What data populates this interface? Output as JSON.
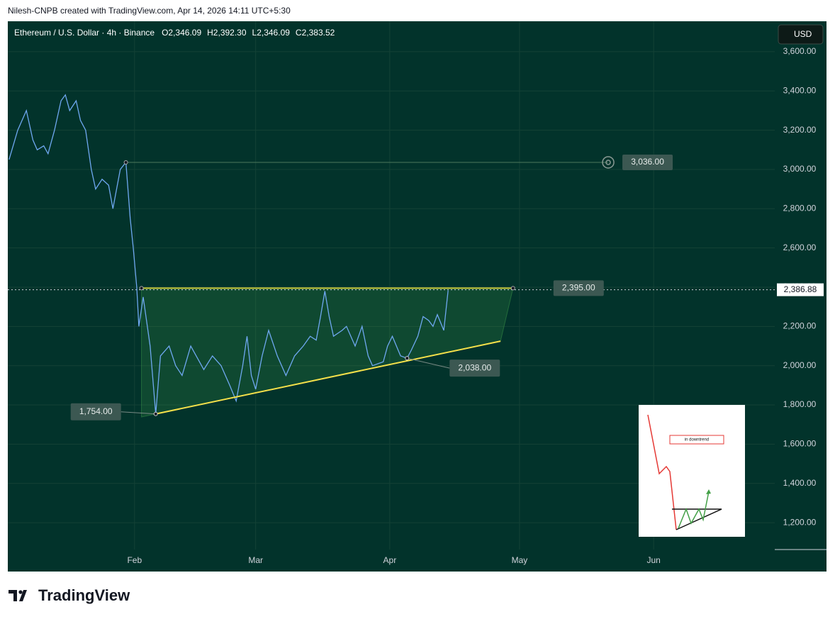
{
  "attribution": "Nilesh-CNPB created with TradingView.com, Apr 14, 2026 14:11 UTC+5:30",
  "brand": "TradingView",
  "chart_data": {
    "type": "line",
    "title": "Ethereum / U.S. Dollar · 4h · Binance",
    "ohlc": [
      "O2,346.09",
      "H2,392.30",
      "L2,346.09",
      "C2,383.52"
    ],
    "currency": "USD",
    "color": "#6fa8f0",
    "x": [
      3,
      5,
      7,
      8.5,
      9.5,
      11,
      12,
      13.5,
      15,
      16,
      17,
      18.5,
      19.5,
      20.7,
      22,
      23,
      24.5,
      26,
      27,
      28.7,
      30,
      31,
      31.7,
      32.5,
      33,
      34,
      35.6,
      36.9,
      38,
      40,
      41.5,
      43,
      45,
      48,
      50,
      52,
      54,
      55.5,
      57,
      58,
      59,
      60,
      61.5,
      63,
      65,
      67,
      69,
      71,
      72.6,
      74,
      75,
      76,
      77,
      78,
      80,
      81,
      83,
      84.6,
      86,
      87,
      89.5,
      90.5,
      91.6,
      93.5,
      95,
      96,
      97.5,
      98.7,
      100,
      101,
      102,
      103.5,
      104.5
    ],
    "values": [
      3050,
      3200,
      3300,
      3150,
      3100,
      3120,
      3080,
      3200,
      3350,
      3380,
      3300,
      3350,
      3250,
      3200,
      3000,
      2900,
      2950,
      2920,
      2800,
      3000,
      3036,
      2750,
      2600,
      2400,
      2200,
      2350,
      2100,
      1754,
      2050,
      2100,
      2000,
      1950,
      2100,
      1980,
      2050,
      2000,
      1900,
      1820,
      2000,
      2150,
      1950,
      1880,
      2050,
      2180,
      2050,
      1950,
      2050,
      2100,
      2150,
      2130,
      2250,
      2380,
      2250,
      2150,
      2180,
      2200,
      2100,
      2200,
      2050,
      2000,
      2020,
      2100,
      2150,
      2050,
      2038,
      2080,
      2150,
      2250,
      2230,
      2200,
      2260,
      2180,
      2383.52
    ],
    "xlim": [
      2.7,
      180
    ],
    "xticks": [
      {
        "value": 32,
        "label": "Feb"
      },
      {
        "value": 60,
        "label": "Mar"
      },
      {
        "value": 91,
        "label": "Apr"
      },
      {
        "value": 121,
        "label": "May"
      },
      {
        "value": 152,
        "label": "Jun"
      }
    ],
    "ylim": [
      1063,
      3755
    ],
    "yticks": [
      {
        "value": 1200,
        "label": "1,200.00"
      },
      {
        "value": 1400,
        "label": "1,400.00"
      },
      {
        "value": 1600,
        "label": "1,600.00"
      },
      {
        "value": 1800,
        "label": "1,800.00"
      },
      {
        "value": 2000,
        "label": "2,000.00"
      },
      {
        "value": 2200,
        "label": "2,200.00"
      },
      {
        "value": 2400,
        "label": "2,400.00"
      },
      {
        "value": 2600,
        "label": "2,600.00"
      },
      {
        "value": 2800,
        "label": "2,800.00"
      },
      {
        "value": 3000,
        "label": "3,000.00"
      },
      {
        "value": 3200,
        "label": "3,200.00"
      },
      {
        "value": 3400,
        "label": "3,400.00"
      },
      {
        "value": 3600,
        "label": "3,600.00"
      }
    ],
    "grid": true,
    "last_price": {
      "value": 2386.88,
      "label": "2,386.88"
    },
    "levels": [
      {
        "value": 3036,
        "label": "3,036.00",
        "x_start": 30,
        "x_end": 141.5
      },
      {
        "value": 2395,
        "label": "2,395.00",
        "x_start": 33.6,
        "x_end": 119.5
      }
    ],
    "trendline": {
      "x": [
        36.9,
        116.6
      ],
      "y": [
        1754,
        2125
      ]
    },
    "points": [
      {
        "x": 36.9,
        "value": 1754,
        "label": "1,754.00"
      },
      {
        "x": 95,
        "value": 2038,
        "label": "2,038.00"
      }
    ],
    "inset_text": "in downtrend"
  }
}
